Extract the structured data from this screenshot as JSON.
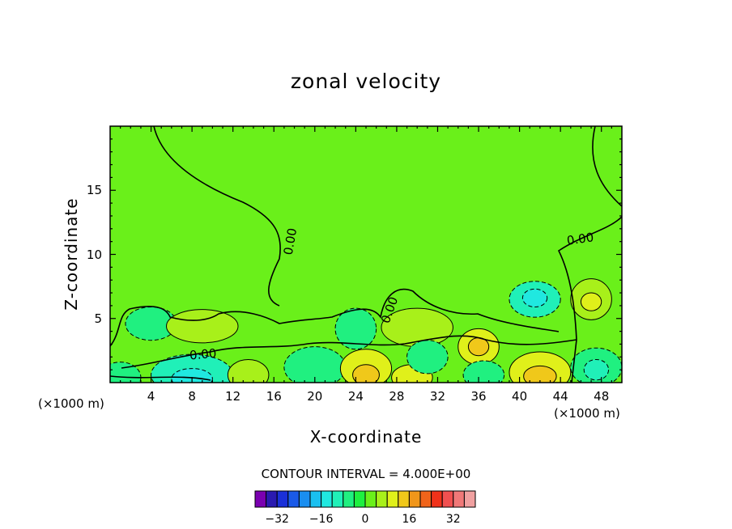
{
  "chart_data": {
    "type": "heatmap",
    "title": "zonal velocity",
    "xlabel": "X-coordinate",
    "ylabel": "Z-coordinate",
    "x_unit_label": "(×1000 m)",
    "x_ticks": [
      4,
      8,
      12,
      16,
      20,
      24,
      28,
      32,
      36,
      40,
      44,
      48
    ],
    "y_ticks": [
      5,
      10,
      15
    ],
    "xlim": [
      0,
      50
    ],
    "ylim": [
      0,
      20
    ],
    "contour_interval_text": "CONTOUR INTERVAL = 4.000E+00",
    "contour_label": "0.00",
    "colorbar": {
      "colors": [
        "#7a00b0",
        "#2a1ab0",
        "#1a30d8",
        "#1a5ae8",
        "#1a8ef0",
        "#1ac0f0",
        "#20e8e0",
        "#20f0b8",
        "#20f080",
        "#1ef040",
        "#6af01a",
        "#a8f01a",
        "#e0f01a",
        "#f0c81a",
        "#f0961a",
        "#f0641a",
        "#f0321a",
        "#f05050",
        "#f07878",
        "#f0a0a0"
      ],
      "tick_labels": [
        "−32",
        "−16",
        "0",
        "16",
        "32"
      ],
      "tick_values": [
        -32,
        -16,
        0,
        16,
        32
      ],
      "min": -40,
      "max": 40
    },
    "background_level": 0
  },
  "blobs": [
    {
      "x": 41.5,
      "y": 6.5,
      "rx": 2.5,
      "ry": 1.4,
      "v": -12
    },
    {
      "x": 41.5,
      "y": 6.6,
      "rx": 1.2,
      "ry": 0.7,
      "v": -16
    },
    {
      "x": 47,
      "y": 6.5,
      "rx": 2,
      "ry": 1.6,
      "v": 6
    },
    {
      "x": 47,
      "y": 6.3,
      "rx": 1,
      "ry": 0.7,
      "v": 9
    },
    {
      "x": 4,
      "y": 4.6,
      "rx": 2.5,
      "ry": 1.3,
      "v": -6
    },
    {
      "x": 9,
      "y": 4.4,
      "rx": 3.5,
      "ry": 1.3,
      "v": 5
    },
    {
      "x": 24,
      "y": 4.2,
      "rx": 2,
      "ry": 1.6,
      "v": -6
    },
    {
      "x": 30,
      "y": 4.3,
      "rx": 3.5,
      "ry": 1.5,
      "v": 5
    },
    {
      "x": 36,
      "y": 2.8,
      "rx": 2,
      "ry": 1.4,
      "v": 9
    },
    {
      "x": 36,
      "y": 2.8,
      "rx": 1,
      "ry": 0.7,
      "v": 13
    },
    {
      "x": 8,
      "y": 0.6,
      "rx": 4,
      "ry": 1.6,
      "v": -9
    },
    {
      "x": 8,
      "y": 0.3,
      "rx": 2,
      "ry": 0.8,
      "v": -13
    },
    {
      "x": 1,
      "y": 0.4,
      "rx": 2,
      "ry": 1.2,
      "v": -8
    },
    {
      "x": 13.5,
      "y": 0.6,
      "rx": 2,
      "ry": 1.2,
      "v": 7
    },
    {
      "x": 20,
      "y": 1.2,
      "rx": 3,
      "ry": 1.6,
      "v": -5
    },
    {
      "x": 25,
      "y": 1.1,
      "rx": 2.5,
      "ry": 1.5,
      "v": 9
    },
    {
      "x": 25,
      "y": 0.6,
      "rx": 1.3,
      "ry": 0.8,
      "v": 13
    },
    {
      "x": 29.5,
      "y": 0.4,
      "rx": 2,
      "ry": 1,
      "v": 8
    },
    {
      "x": 31,
      "y": 2,
      "rx": 2,
      "ry": 1.3,
      "v": -7
    },
    {
      "x": 36.5,
      "y": 0.6,
      "rx": 2,
      "ry": 1.1,
      "v": -8
    },
    {
      "x": 42,
      "y": 0.8,
      "rx": 3,
      "ry": 1.6,
      "v": 9
    },
    {
      "x": 42,
      "y": 0.5,
      "rx": 1.6,
      "ry": 0.8,
      "v": 15
    },
    {
      "x": 47.5,
      "y": 1.2,
      "rx": 2.5,
      "ry": 1.5,
      "v": -8
    },
    {
      "x": 47.5,
      "y": 1.0,
      "rx": 1.2,
      "ry": 0.8,
      "v": -12
    }
  ]
}
